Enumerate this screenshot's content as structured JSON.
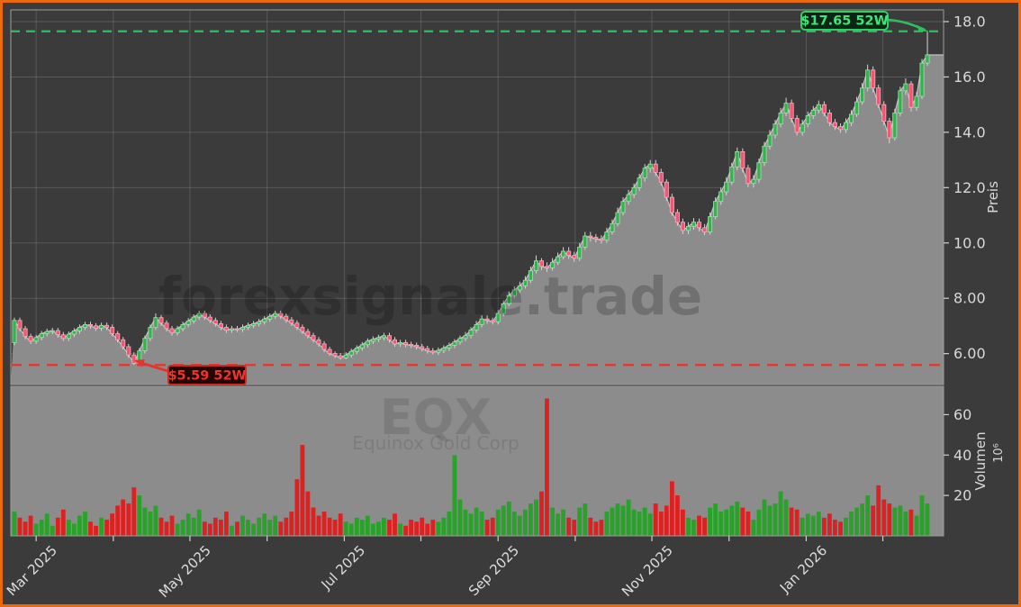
{
  "window": {
    "frame_color": "#ec680d",
    "background": "#3b3b3b"
  },
  "watermarks": {
    "main": "forexsignale.trade",
    "symbol": "EQX",
    "company": "Equinox Gold Corp"
  },
  "annotations": {
    "high": {
      "label": "$17.65 52W",
      "value": 17.65,
      "text_color": "#3fe57a",
      "box_fill": "#0d2514",
      "box_border": "#2fcf67",
      "line_color": "#2fbf5c"
    },
    "low": {
      "label": "$5.59 52W",
      "value": 5.59,
      "text_color": "#ee352b",
      "box_fill": "#230606",
      "box_border": "#cc2b22",
      "line_color": "#e7342a"
    }
  },
  "price_axis": {
    "title": "Preis",
    "tick_labels": [
      "18.0",
      "16.0",
      "14.0",
      "12.0",
      "10.0",
      "8.00",
      "6.00"
    ],
    "tick_values": [
      18,
      16,
      14,
      12,
      10,
      8,
      6
    ]
  },
  "volume_axis": {
    "title": "Volumen",
    "unit": "10⁶",
    "tick_labels": [
      "60",
      "40",
      "20"
    ],
    "tick_values": [
      60,
      40,
      20
    ]
  },
  "x_axis": {
    "ticks": [
      {
        "i": 4.0,
        "label": "Mar 2025"
      },
      {
        "i": 18.2,
        "label": ""
      },
      {
        "i": 32.3,
        "label": "May 2025"
      },
      {
        "i": 46.5,
        "label": ""
      },
      {
        "i": 60.7,
        "label": "Jul 2025"
      },
      {
        "i": 74.8,
        "label": ""
      },
      {
        "i": 89.0,
        "label": "Sep 2025"
      },
      {
        "i": 103.2,
        "label": ""
      },
      {
        "i": 117.3,
        "label": "Nov 2025"
      },
      {
        "i": 131.5,
        "label": ""
      },
      {
        "i": 145.7,
        "label": "Jan 2026"
      },
      {
        "i": 159.8,
        "label": ""
      }
    ]
  },
  "style": {
    "up_body": "#35b14e",
    "up_edge": "#a2e2ab",
    "down_body": "#f25672",
    "down_edge": "#f6b0be",
    "wick": "#d5d5d5",
    "vol_up": "#28a228",
    "vol_down": "#dd2020",
    "area_fill": "#8c8c8c",
    "close_line": "#c9c9c9",
    "grid": "rgba(255,255,255,0.15)",
    "pane_border": "#9c9c9c",
    "tick_mark": "#cfcfcf",
    "pane_bg": "#3b3b3b",
    "volume_pane_bg": "#8c8c8c"
  },
  "chart_data": {
    "type": "candlestick",
    "symbol": "EQX",
    "company": "Equinox Gold Corp",
    "high_52w": 17.65,
    "low_52w": 5.59,
    "price_ylim": [
      4.87,
      18.42
    ],
    "volume_ylim_millions": [
      0,
      74
    ],
    "grid": true,
    "columns": [
      "open",
      "high",
      "low",
      "close",
      "volume_millions"
    ],
    "candles": [
      [
        6.4,
        7.3,
        6.3,
        7.2,
        12
      ],
      [
        7.2,
        7.3,
        6.8,
        6.9,
        9
      ],
      [
        6.9,
        7.0,
        6.52,
        6.62,
        7
      ],
      [
        6.62,
        6.72,
        6.35,
        6.45,
        10
      ],
      [
        6.45,
        6.68,
        6.35,
        6.58,
        6
      ],
      [
        6.58,
        6.82,
        6.48,
        6.72,
        8
      ],
      [
        6.72,
        6.9,
        6.62,
        6.8,
        11
      ],
      [
        6.8,
        6.93,
        6.7,
        6.83,
        5
      ],
      [
        6.83,
        6.93,
        6.58,
        6.68,
        9
      ],
      [
        6.68,
        6.78,
        6.45,
        6.55,
        13
      ],
      [
        6.55,
        6.8,
        6.45,
        6.7,
        8
      ],
      [
        6.7,
        6.92,
        6.6,
        6.82,
        6
      ],
      [
        6.82,
        7.05,
        6.72,
        6.95,
        10
      ],
      [
        6.95,
        7.15,
        6.85,
        7.05,
        12
      ],
      [
        7.05,
        7.15,
        6.9,
        7.0,
        7
      ],
      [
        7.0,
        7.1,
        6.82,
        6.92,
        5
      ],
      [
        6.92,
        7.12,
        6.82,
        7.02,
        9
      ],
      [
        7.02,
        7.12,
        6.85,
        6.95,
        8
      ],
      [
        6.95,
        7.05,
        6.62,
        6.72,
        11
      ],
      [
        6.72,
        6.82,
        6.4,
        6.5,
        15
      ],
      [
        6.5,
        6.6,
        6.15,
        6.25,
        18
      ],
      [
        6.25,
        6.35,
        5.85,
        5.95,
        16
      ],
      [
        5.95,
        6.05,
        5.59,
        5.65,
        24
      ],
      [
        5.65,
        6.2,
        5.62,
        6.1,
        20
      ],
      [
        6.1,
        6.65,
        6.0,
        6.55,
        14
      ],
      [
        6.55,
        7.05,
        6.45,
        6.95,
        12
      ],
      [
        6.95,
        7.45,
        6.85,
        7.3,
        15
      ],
      [
        7.3,
        7.4,
        7.0,
        7.1,
        9
      ],
      [
        7.1,
        7.2,
        6.8,
        6.9,
        7
      ],
      [
        6.9,
        7.0,
        6.65,
        6.75,
        10
      ],
      [
        6.75,
        7.0,
        6.65,
        6.9,
        6
      ],
      [
        6.9,
        7.15,
        6.8,
        7.05,
        8
      ],
      [
        7.05,
        7.28,
        6.95,
        7.18,
        11
      ],
      [
        7.18,
        7.42,
        7.08,
        7.32,
        9
      ],
      [
        7.32,
        7.55,
        7.22,
        7.45,
        13
      ],
      [
        7.45,
        7.55,
        7.22,
        7.32,
        7
      ],
      [
        7.32,
        7.42,
        7.1,
        7.2,
        6
      ],
      [
        7.2,
        7.3,
        6.98,
        7.08,
        9
      ],
      [
        7.08,
        7.18,
        6.85,
        6.95,
        8
      ],
      [
        6.95,
        7.05,
        6.75,
        6.85,
        12
      ],
      [
        6.85,
        7.0,
        6.75,
        6.9,
        5
      ],
      [
        6.9,
        7.0,
        6.78,
        6.88,
        7
      ],
      [
        6.88,
        7.05,
        6.78,
        6.95,
        10
      ],
      [
        6.95,
        7.12,
        6.85,
        7.02,
        8
      ],
      [
        7.02,
        7.18,
        6.92,
        7.08,
        6
      ],
      [
        7.08,
        7.25,
        6.98,
        7.15,
        9
      ],
      [
        7.15,
        7.35,
        7.05,
        7.25,
        11
      ],
      [
        7.25,
        7.45,
        7.15,
        7.35,
        8
      ],
      [
        7.35,
        7.55,
        7.25,
        7.45,
        10
      ],
      [
        7.45,
        7.55,
        7.25,
        7.35,
        7
      ],
      [
        7.35,
        7.45,
        7.12,
        7.22,
        9
      ],
      [
        7.22,
        7.32,
        7.0,
        7.1,
        12
      ],
      [
        7.1,
        7.2,
        6.85,
        6.95,
        28
      ],
      [
        6.95,
        7.05,
        6.7,
        6.8,
        45
      ],
      [
        6.8,
        6.9,
        6.55,
        6.65,
        22
      ],
      [
        6.65,
        6.75,
        6.4,
        6.5,
        14
      ],
      [
        6.5,
        6.6,
        6.25,
        6.35,
        10
      ],
      [
        6.35,
        6.45,
        6.05,
        6.15,
        12
      ],
      [
        6.15,
        6.25,
        5.92,
        6.0,
        9
      ],
      [
        6.0,
        6.08,
        5.84,
        5.92,
        8
      ],
      [
        5.92,
        6.02,
        5.78,
        5.85,
        11
      ],
      [
        5.85,
        6.05,
        5.8,
        5.95,
        7
      ],
      [
        5.95,
        6.18,
        5.85,
        6.08,
        6
      ],
      [
        6.08,
        6.3,
        5.98,
        6.2,
        9
      ],
      [
        6.2,
        6.42,
        6.1,
        6.32,
        8
      ],
      [
        6.32,
        6.55,
        6.22,
        6.45,
        10
      ],
      [
        6.45,
        6.62,
        6.35,
        6.52,
        6
      ],
      [
        6.52,
        6.68,
        6.42,
        6.58,
        7
      ],
      [
        6.58,
        6.75,
        6.48,
        6.65,
        9
      ],
      [
        6.65,
        6.75,
        6.4,
        6.5,
        8
      ],
      [
        6.5,
        6.6,
        6.25,
        6.35,
        11
      ],
      [
        6.35,
        6.5,
        6.25,
        6.4,
        6
      ],
      [
        6.4,
        6.5,
        6.23,
        6.33,
        5
      ],
      [
        6.33,
        6.43,
        6.2,
        6.3,
        8
      ],
      [
        6.3,
        6.4,
        6.15,
        6.25,
        7
      ],
      [
        6.25,
        6.35,
        6.08,
        6.18,
        9
      ],
      [
        6.18,
        6.28,
        6.0,
        6.1,
        6
      ],
      [
        6.1,
        6.2,
        5.97,
        6.05,
        8
      ],
      [
        6.05,
        6.22,
        5.95,
        6.12,
        7
      ],
      [
        6.12,
        6.3,
        6.02,
        6.2,
        9
      ],
      [
        6.2,
        6.4,
        6.1,
        6.3,
        12
      ],
      [
        6.3,
        6.52,
        6.2,
        6.42,
        40
      ],
      [
        6.42,
        6.65,
        6.32,
        6.55,
        18
      ],
      [
        6.55,
        6.78,
        6.45,
        6.65,
        13
      ],
      [
        6.65,
        6.95,
        6.55,
        6.85,
        11
      ],
      [
        6.85,
        7.18,
        6.75,
        7.05,
        14
      ],
      [
        7.05,
        7.38,
        6.95,
        7.25,
        12
      ],
      [
        7.25,
        7.38,
        7.08,
        7.2,
        8
      ],
      [
        7.2,
        7.3,
        7.05,
        7.15,
        9
      ],
      [
        7.15,
        7.58,
        7.05,
        7.45,
        13
      ],
      [
        7.45,
        7.92,
        7.35,
        7.8,
        15
      ],
      [
        7.8,
        8.25,
        7.7,
        8.1,
        17
      ],
      [
        8.1,
        8.42,
        8.0,
        8.3,
        12
      ],
      [
        8.3,
        8.6,
        8.2,
        8.45,
        10
      ],
      [
        8.45,
        8.8,
        8.35,
        8.65,
        13
      ],
      [
        8.65,
        9.15,
        8.55,
        9.0,
        16
      ],
      [
        9.0,
        9.55,
        8.9,
        9.35,
        18
      ],
      [
        9.35,
        9.45,
        9.02,
        9.15,
        22
      ],
      [
        9.15,
        9.3,
        8.95,
        9.1,
        68
      ],
      [
        9.1,
        9.45,
        9.0,
        9.3,
        14
      ],
      [
        9.3,
        9.65,
        9.2,
        9.5,
        11
      ],
      [
        9.5,
        9.85,
        9.4,
        9.7,
        13
      ],
      [
        9.7,
        9.85,
        9.42,
        9.55,
        9
      ],
      [
        9.55,
        9.68,
        9.32,
        9.45,
        8
      ],
      [
        9.45,
        10.0,
        9.35,
        9.85,
        14
      ],
      [
        9.85,
        10.4,
        9.75,
        10.25,
        16
      ],
      [
        10.25,
        10.4,
        10.05,
        10.2,
        9
      ],
      [
        10.2,
        10.32,
        10.02,
        10.15,
        7
      ],
      [
        10.15,
        10.28,
        9.98,
        10.1,
        8
      ],
      [
        10.1,
        10.55,
        10.0,
        10.4,
        12
      ],
      [
        10.4,
        10.85,
        10.3,
        10.7,
        14
      ],
      [
        10.7,
        11.28,
        10.6,
        11.1,
        16
      ],
      [
        11.1,
        11.65,
        11.0,
        11.5,
        15
      ],
      [
        11.5,
        11.92,
        11.38,
        11.75,
        18
      ],
      [
        11.75,
        12.15,
        11.62,
        12.0,
        13
      ],
      [
        12.0,
        12.5,
        11.88,
        12.35,
        12
      ],
      [
        12.35,
        12.85,
        12.22,
        12.7,
        14
      ],
      [
        12.7,
        13.0,
        12.55,
        12.85,
        11
      ],
      [
        12.85,
        13.0,
        12.42,
        12.55,
        16
      ],
      [
        12.55,
        12.68,
        12.08,
        12.2,
        12
      ],
      [
        12.2,
        12.3,
        11.52,
        11.65,
        15
      ],
      [
        11.65,
        11.78,
        10.98,
        11.1,
        27
      ],
      [
        11.1,
        11.22,
        10.62,
        10.75,
        20
      ],
      [
        10.75,
        10.88,
        10.32,
        10.45,
        13
      ],
      [
        10.45,
        10.75,
        10.32,
        10.6,
        9
      ],
      [
        10.6,
        10.9,
        10.48,
        10.75,
        8
      ],
      [
        10.75,
        10.88,
        10.42,
        10.55,
        10
      ],
      [
        10.55,
        10.68,
        10.28,
        10.4,
        9
      ],
      [
        10.4,
        11.1,
        10.3,
        10.95,
        14
      ],
      [
        10.95,
        11.65,
        10.85,
        11.5,
        16
      ],
      [
        11.5,
        12.0,
        11.38,
        11.85,
        12
      ],
      [
        11.85,
        12.38,
        11.72,
        12.2,
        13
      ],
      [
        12.2,
        12.9,
        12.1,
        12.75,
        15
      ],
      [
        12.75,
        13.45,
        12.62,
        13.3,
        17
      ],
      [
        13.3,
        13.42,
        12.55,
        12.7,
        14
      ],
      [
        12.7,
        12.82,
        12.02,
        12.15,
        12
      ],
      [
        12.15,
        12.45,
        12.0,
        12.3,
        8
      ],
      [
        12.3,
        13.05,
        12.18,
        12.9,
        13
      ],
      [
        12.9,
        13.65,
        12.78,
        13.5,
        18
      ],
      [
        13.5,
        14.08,
        13.38,
        13.9,
        15
      ],
      [
        13.9,
        14.45,
        13.78,
        14.3,
        16
      ],
      [
        14.3,
        14.88,
        14.18,
        14.7,
        22
      ],
      [
        14.7,
        15.25,
        14.58,
        15.05,
        18
      ],
      [
        15.05,
        15.18,
        14.35,
        14.5,
        14
      ],
      [
        14.5,
        14.62,
        13.88,
        14.0,
        13
      ],
      [
        14.0,
        14.45,
        13.88,
        14.3,
        9
      ],
      [
        14.3,
        14.75,
        14.18,
        14.6,
        11
      ],
      [
        14.6,
        14.95,
        14.48,
        14.8,
        10
      ],
      [
        14.8,
        15.15,
        14.68,
        15.0,
        12
      ],
      [
        15.0,
        15.12,
        14.58,
        14.7,
        9
      ],
      [
        14.7,
        14.82,
        14.22,
        14.35,
        11
      ],
      [
        14.35,
        14.48,
        14.08,
        14.2,
        8
      ],
      [
        14.2,
        14.32,
        13.98,
        14.1,
        7
      ],
      [
        14.1,
        14.5,
        13.98,
        14.35,
        9
      ],
      [
        14.35,
        14.8,
        14.22,
        14.65,
        12
      ],
      [
        14.65,
        15.28,
        14.55,
        15.1,
        14
      ],
      [
        15.1,
        15.78,
        15.0,
        15.6,
        16
      ],
      [
        15.6,
        16.45,
        15.48,
        16.25,
        20
      ],
      [
        16.25,
        16.38,
        15.45,
        15.6,
        15
      ],
      [
        15.6,
        15.72,
        14.88,
        15.0,
        25
      ],
      [
        15.0,
        15.12,
        14.25,
        14.4,
        18
      ],
      [
        14.4,
        14.52,
        13.6,
        13.8,
        16
      ],
      [
        13.8,
        14.85,
        13.7,
        14.7,
        14
      ],
      [
        14.7,
        15.65,
        14.58,
        15.5,
        15
      ],
      [
        15.5,
        15.95,
        15.35,
        15.75,
        12
      ],
      [
        15.75,
        15.85,
        14.75,
        14.9,
        13
      ],
      [
        14.9,
        15.45,
        14.78,
        15.3,
        10
      ],
      [
        15.3,
        16.65,
        15.2,
        16.5,
        20
      ],
      [
        16.5,
        17.65,
        16.4,
        16.8,
        16
      ]
    ]
  }
}
